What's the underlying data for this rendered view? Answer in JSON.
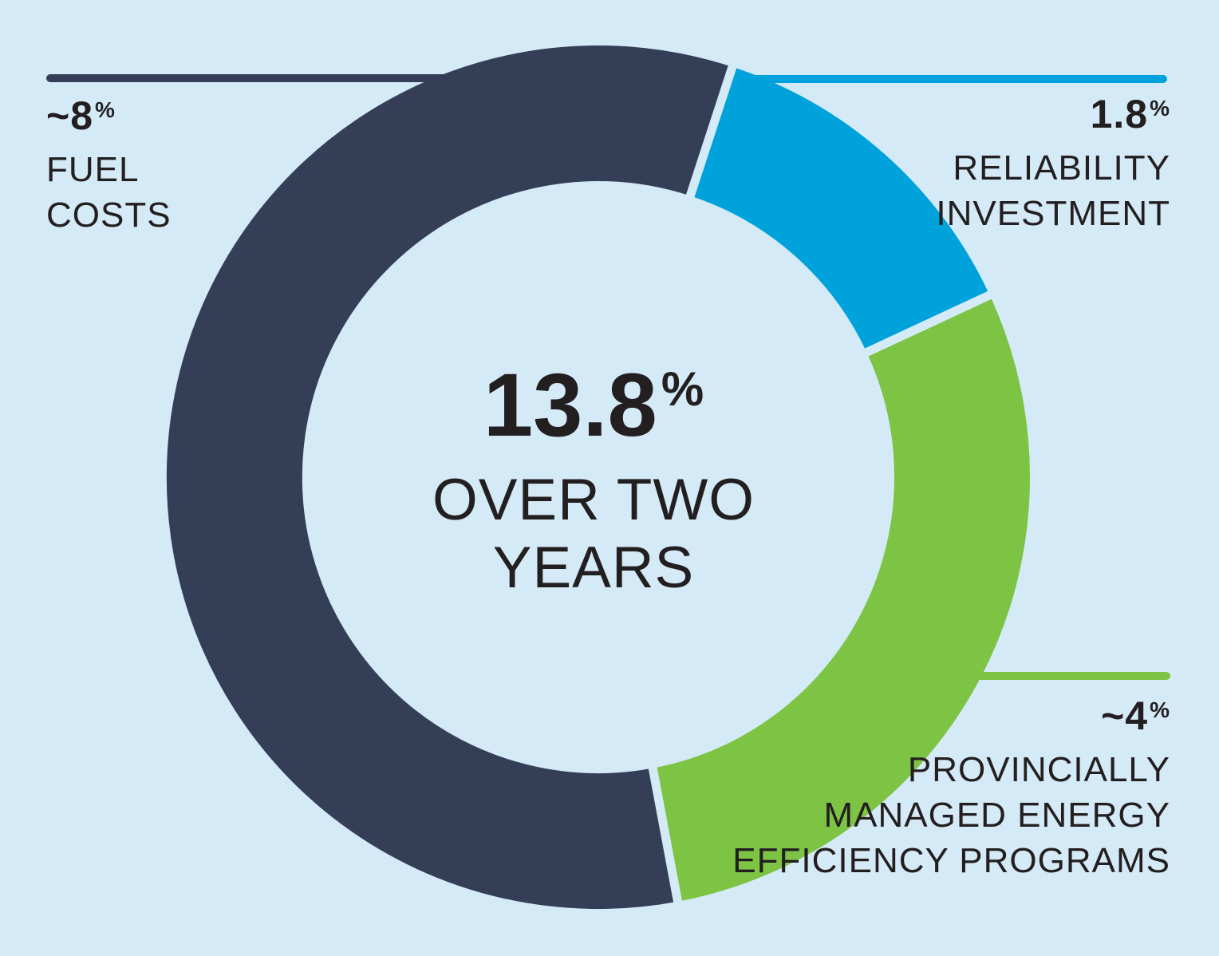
{
  "palette": {
    "background": "#d5eaf7",
    "text": "#231f20",
    "navy": "#343e57",
    "blue": "#00a2db",
    "green": "#7dc344"
  },
  "chart_data": {
    "type": "pie",
    "donut": true,
    "total": 13.8,
    "unit": "%",
    "rotation_deg": 169.4,
    "legend_position": "callouts",
    "center": {
      "value": "13.8",
      "label_lines": [
        "OVER TWO",
        "YEARS"
      ]
    },
    "segments": [
      {
        "id": "fuel-costs",
        "value": 8,
        "value_label": "~8",
        "approximate": true,
        "color": "#343e57",
        "label_lines": [
          "FUEL",
          "COSTS"
        ]
      },
      {
        "id": "reliability-investment",
        "value": 1.8,
        "value_label": "1.8",
        "approximate": false,
        "color": "#00a2db",
        "label_lines": [
          "RELIABILITY",
          "INVESTMENT"
        ]
      },
      {
        "id": "efficiency-programs",
        "value": 4,
        "value_label": "~4",
        "approximate": true,
        "color": "#7dc344",
        "label_lines": [
          "PROVINCIALLY",
          "MANAGED ENERGY",
          "EFFICIENCY PROGRAMS"
        ]
      }
    ]
  }
}
